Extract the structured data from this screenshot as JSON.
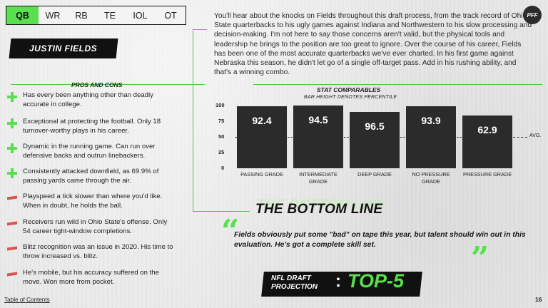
{
  "tabs": [
    {
      "label": "QB",
      "active": true
    },
    {
      "label": "WR",
      "active": false
    },
    {
      "label": "RB",
      "active": false
    },
    {
      "label": "TE",
      "active": false
    },
    {
      "label": "IOL",
      "active": false
    },
    {
      "label": "OT",
      "active": false
    }
  ],
  "player": {
    "name": "JUSTIN FIELDS"
  },
  "logo": {
    "text": "PFF"
  },
  "summary": "You'll hear about the knocks on Fields throughout this draft process, from the track record of Ohio State quarterbacks to his ugly games against Indiana and Northwestern to his slow processing and decision-making. I'm not here to say those concerns aren't valid, but the physical tools and leadership he brings to the position are too great to ignore. Over the course of his career, Fields has been one of the most accurate quarterbacks we've ever charted. In his first game against Nebraska this season, he didn't let go of a single off-target pass. Add in his rushing ability, and that's a winning combo.",
  "pros_cons": {
    "title": "PROS AND CONS",
    "pros": [
      "Has every been anything other than deadly accurate in college.",
      "Exceptional at protecting the football. Only 18 turnover-worthy plays in his career.",
      "Dynamic in the running game. Can run over defensive backs and outrun linebackers.",
      "Consistently attacked downfield, as 69.9% of passing yards came through the air."
    ],
    "cons": [
      "Playspeed a tick slower than where you'd like. When in doubt, he holds the ball.",
      "Receivers run wild in Ohio State's offense. Only 54 career tight-window completions.",
      "Blitz recognition was an issue in 2020. His time to throw increased vs. blitz.",
      "He's mobile, but his accuracy suffered on the move. Won more from pocket."
    ]
  },
  "stat_comparables": {
    "title": "STAT COMPARABLES",
    "subtitle": "BAR HEIGHT DENOTES PERCENTILE",
    "avg_label": "AVG."
  },
  "chart_data": {
    "type": "bar",
    "categories": [
      "PASSING GRADE",
      "INTERMEDIATE GRADE",
      "DEEP GRADE",
      "NO PRESSURE GRADE",
      "PRESSURE GRADE"
    ],
    "category_lines": [
      [
        "PASSING GRADE"
      ],
      [
        "INTERMEDIATE",
        "GRADE"
      ],
      [
        "DEEP GRADE"
      ],
      [
        "NO PRESSURE",
        "GRADE"
      ],
      [
        "PRESSURE GRADE"
      ]
    ],
    "values": [
      92.4,
      94.5,
      96.5,
      93.9,
      62.9
    ],
    "value_labels": [
      "92.4",
      "94.5",
      "96.5",
      "93.9",
      "62.9"
    ],
    "percentiles": [
      99,
      100,
      90,
      99,
      84
    ],
    "average_percentile": 50,
    "yticks": [
      0,
      25,
      50,
      75,
      100
    ],
    "ylim": [
      0,
      100
    ],
    "grid": false,
    "colors": {
      "bar": "#2b2b2b",
      "bar_label": "#ffffff"
    }
  },
  "bottom_line": {
    "ghost": "THE BOTTOM LINE",
    "title": "THE BOTTOM LINE",
    "text": "Fields obviously put some \"bad\" on tape this year, but talent should win out in this evaluation. He's got a complete skill set.",
    "open_quote": "“",
    "close_quote": "”"
  },
  "projection": {
    "label_line1": "NFL DRAFT",
    "label_line2": "PROJECTION",
    "colon": ":",
    "value": "TOP-5"
  },
  "footer": {
    "toc": "Table of Contents",
    "page": "16"
  },
  "colors": {
    "accent": "#58e04e",
    "con": "#d9534f",
    "dark": "#111111"
  }
}
